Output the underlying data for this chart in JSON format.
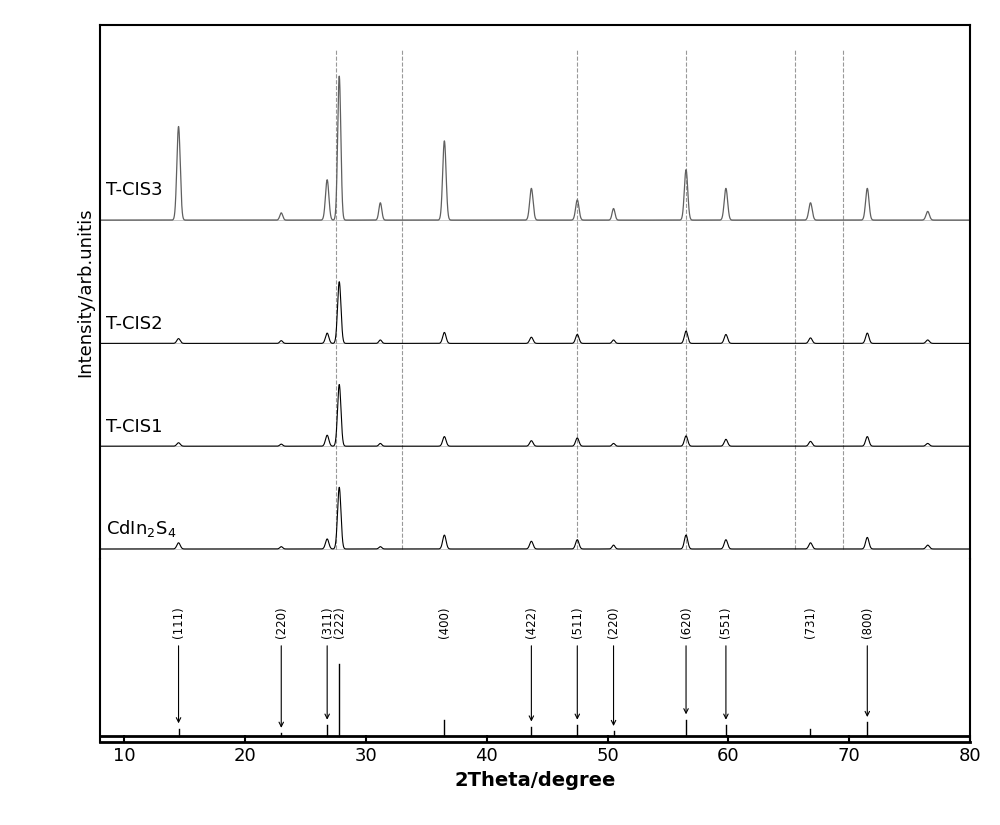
{
  "xlim": [
    8,
    80
  ],
  "xlabel": "2Theta/degree",
  "ylabel": "Intensity/arb.unitis",
  "xticks": [
    10,
    20,
    30,
    40,
    50,
    60,
    70,
    80
  ],
  "background_color": "#ffffff",
  "dashed_line_positions": [
    27.5,
    33.0,
    47.5,
    56.5,
    65.5,
    69.5
  ],
  "miller_indices": [
    "(111)",
    "(220)",
    "(311)",
    "(222)",
    "(400)",
    "(422)",
    "(511)",
    "(220)",
    "(620)",
    "(551)",
    "(731)",
    "(800)"
  ],
  "miller_x": [
    14.5,
    23.0,
    26.8,
    27.8,
    36.5,
    43.7,
    47.5,
    50.5,
    56.5,
    59.8,
    66.8,
    71.5
  ],
  "miller_heights": [
    8,
    3,
    12,
    80,
    18,
    10,
    12,
    5,
    18,
    12,
    8,
    15
  ],
  "series_labels": [
    "T-CIS3",
    "T-CIS2",
    "T-CIS1",
    "CdIn₂S₄"
  ],
  "series_colors": [
    "#606060",
    "#000000",
    "#000000",
    "#000000"
  ],
  "cis_peaks": [
    [
      14.5,
      8,
      0.14
    ],
    [
      23.0,
      3,
      0.12
    ],
    [
      26.8,
      13,
      0.14
    ],
    [
      27.8,
      80,
      0.14
    ],
    [
      31.2,
      3,
      0.12
    ],
    [
      36.5,
      18,
      0.14
    ],
    [
      43.7,
      10,
      0.14
    ],
    [
      47.5,
      12,
      0.14
    ],
    [
      50.5,
      5,
      0.12
    ],
    [
      56.5,
      18,
      0.14
    ],
    [
      59.8,
      12,
      0.14
    ],
    [
      66.8,
      8,
      0.14
    ],
    [
      71.5,
      15,
      0.14
    ],
    [
      76.5,
      5,
      0.14
    ]
  ],
  "tcis1_peaks": [
    [
      14.5,
      5,
      0.14
    ],
    [
      23.0,
      3,
      0.12
    ],
    [
      26.8,
      16,
      0.14
    ],
    [
      27.8,
      90,
      0.14
    ],
    [
      31.2,
      4,
      0.12
    ],
    [
      36.5,
      14,
      0.14
    ],
    [
      43.7,
      8,
      0.14
    ],
    [
      47.5,
      12,
      0.14
    ],
    [
      50.5,
      4,
      0.12
    ],
    [
      56.5,
      15,
      0.14
    ],
    [
      59.8,
      10,
      0.14
    ],
    [
      66.8,
      7,
      0.14
    ],
    [
      71.5,
      14,
      0.14
    ],
    [
      76.5,
      4,
      0.14
    ]
  ],
  "tcis2_peaks": [
    [
      14.5,
      7,
      0.14
    ],
    [
      23.0,
      4,
      0.12
    ],
    [
      26.8,
      15,
      0.14
    ],
    [
      27.8,
      90,
      0.14
    ],
    [
      31.2,
      5,
      0.12
    ],
    [
      36.5,
      16,
      0.14
    ],
    [
      43.7,
      9,
      0.14
    ],
    [
      47.5,
      13,
      0.14
    ],
    [
      50.5,
      5,
      0.12
    ],
    [
      56.5,
      18,
      0.14
    ],
    [
      59.8,
      13,
      0.14
    ],
    [
      66.8,
      8,
      0.14
    ],
    [
      71.5,
      15,
      0.14
    ],
    [
      76.5,
      5,
      0.14
    ]
  ],
  "tcis3_peaks": [
    [
      14.5,
      65,
      0.14
    ],
    [
      23.0,
      5,
      0.12
    ],
    [
      26.8,
      28,
      0.14
    ],
    [
      27.8,
      100,
      0.13
    ],
    [
      31.2,
      12,
      0.12
    ],
    [
      36.5,
      55,
      0.14
    ],
    [
      43.7,
      22,
      0.14
    ],
    [
      47.5,
      14,
      0.14
    ],
    [
      50.5,
      8,
      0.12
    ],
    [
      56.5,
      35,
      0.14
    ],
    [
      59.8,
      22,
      0.14
    ],
    [
      66.8,
      12,
      0.14
    ],
    [
      71.5,
      22,
      0.14
    ],
    [
      76.5,
      6,
      0.14
    ]
  ]
}
